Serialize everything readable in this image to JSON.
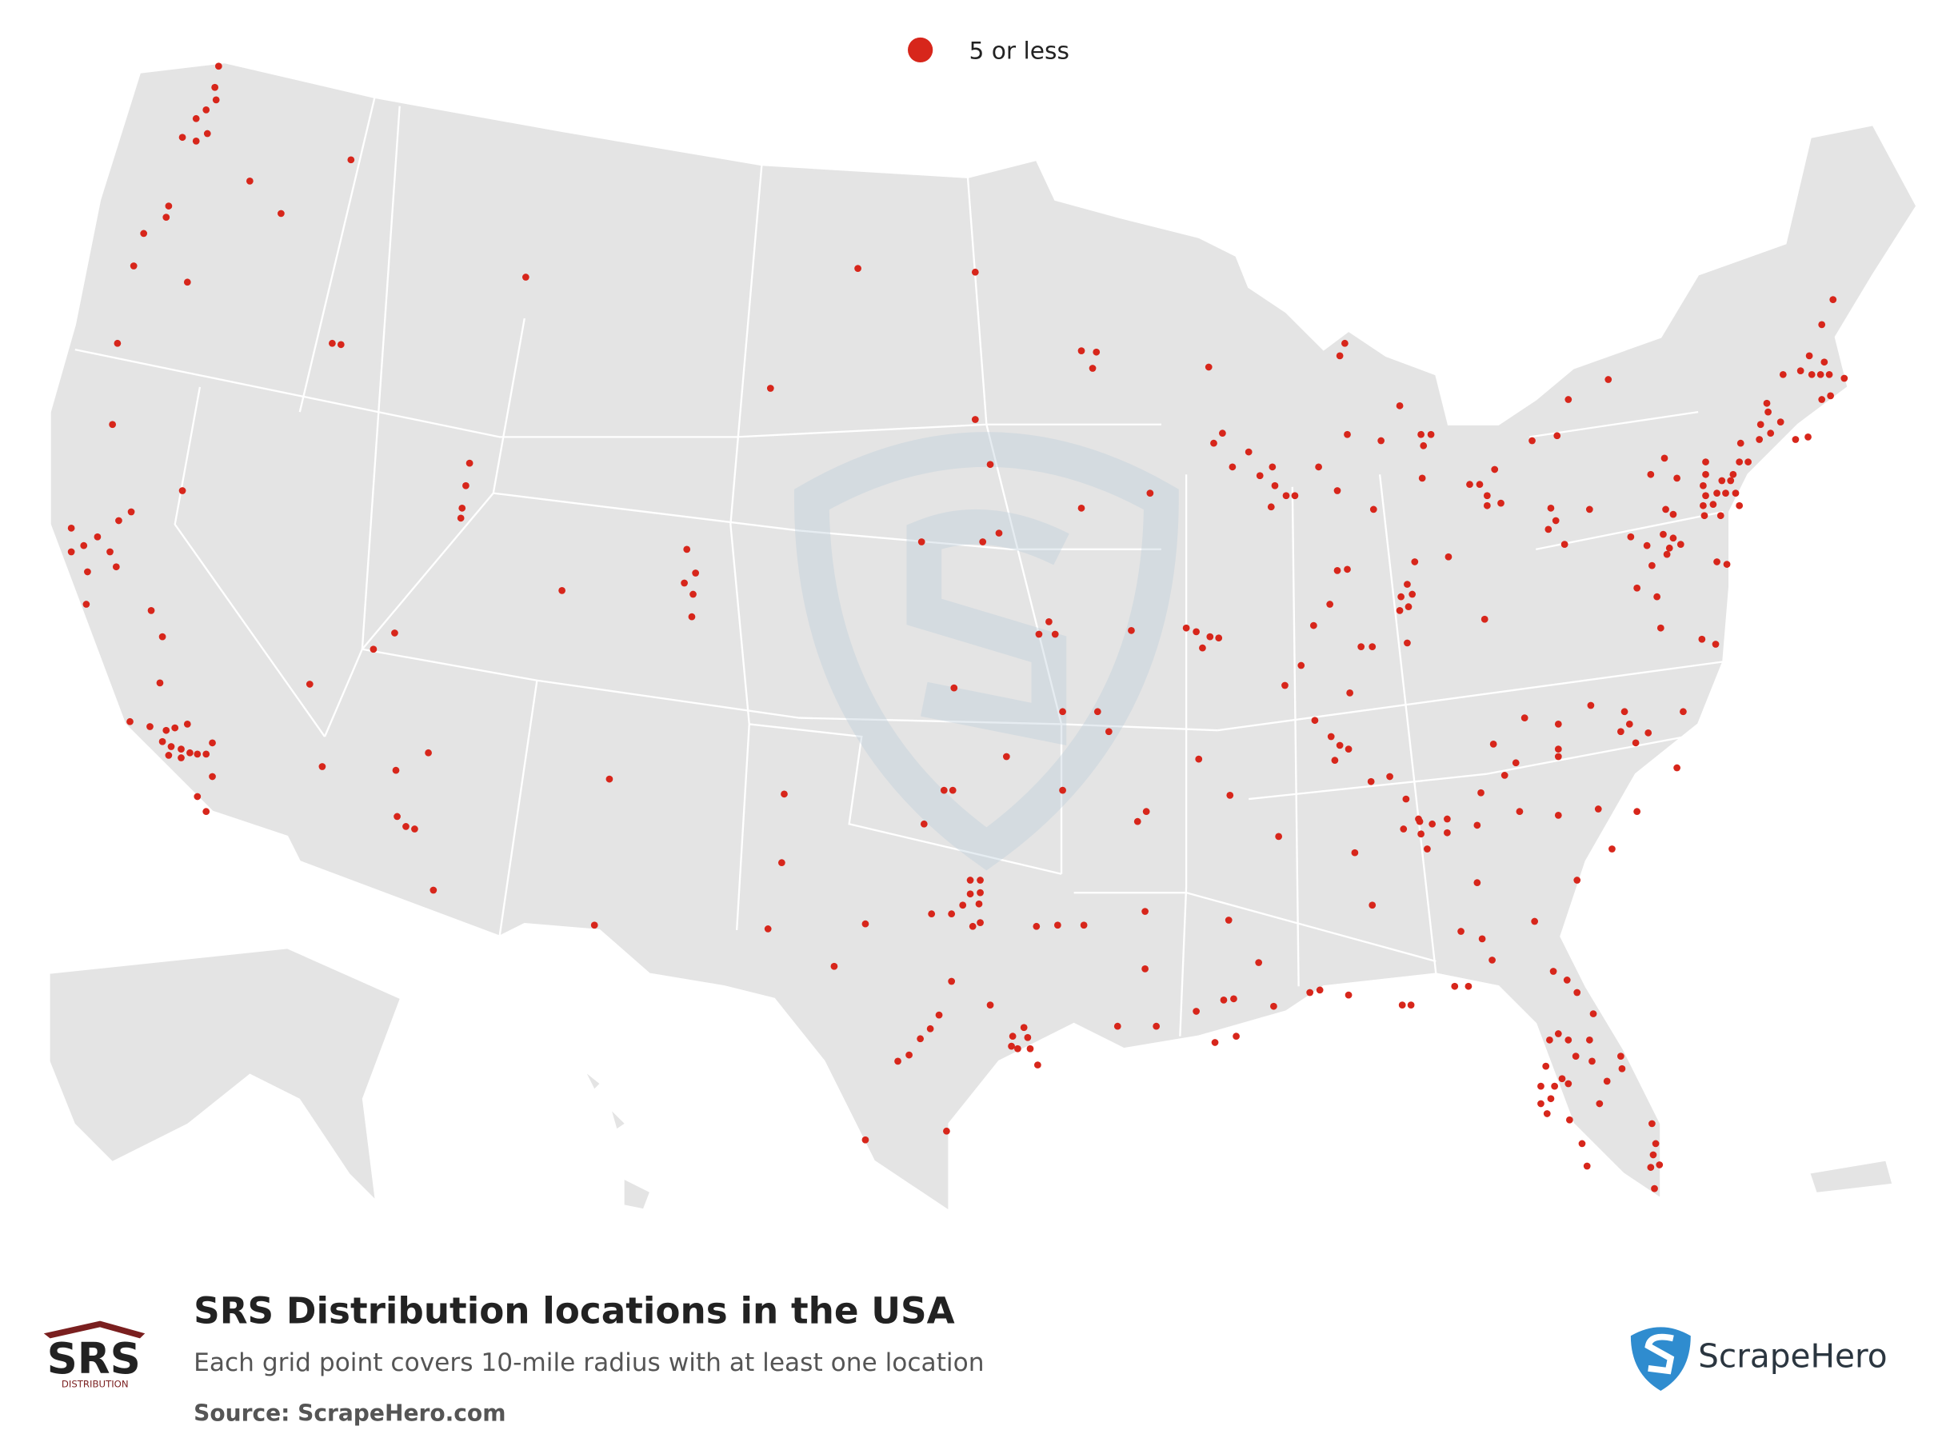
{
  "legend": {
    "label": "5 or less"
  },
  "footer": {
    "title": "SRS Distribution locations in the USA",
    "subtitle": "Each grid point covers 10-mile radius with at least one location",
    "source": "Source: ScrapeHero.com"
  },
  "logo": {
    "name": "SRS",
    "tagline": "DISTRIBUTION"
  },
  "brand": {
    "name": "ScrapeHero"
  }
}
